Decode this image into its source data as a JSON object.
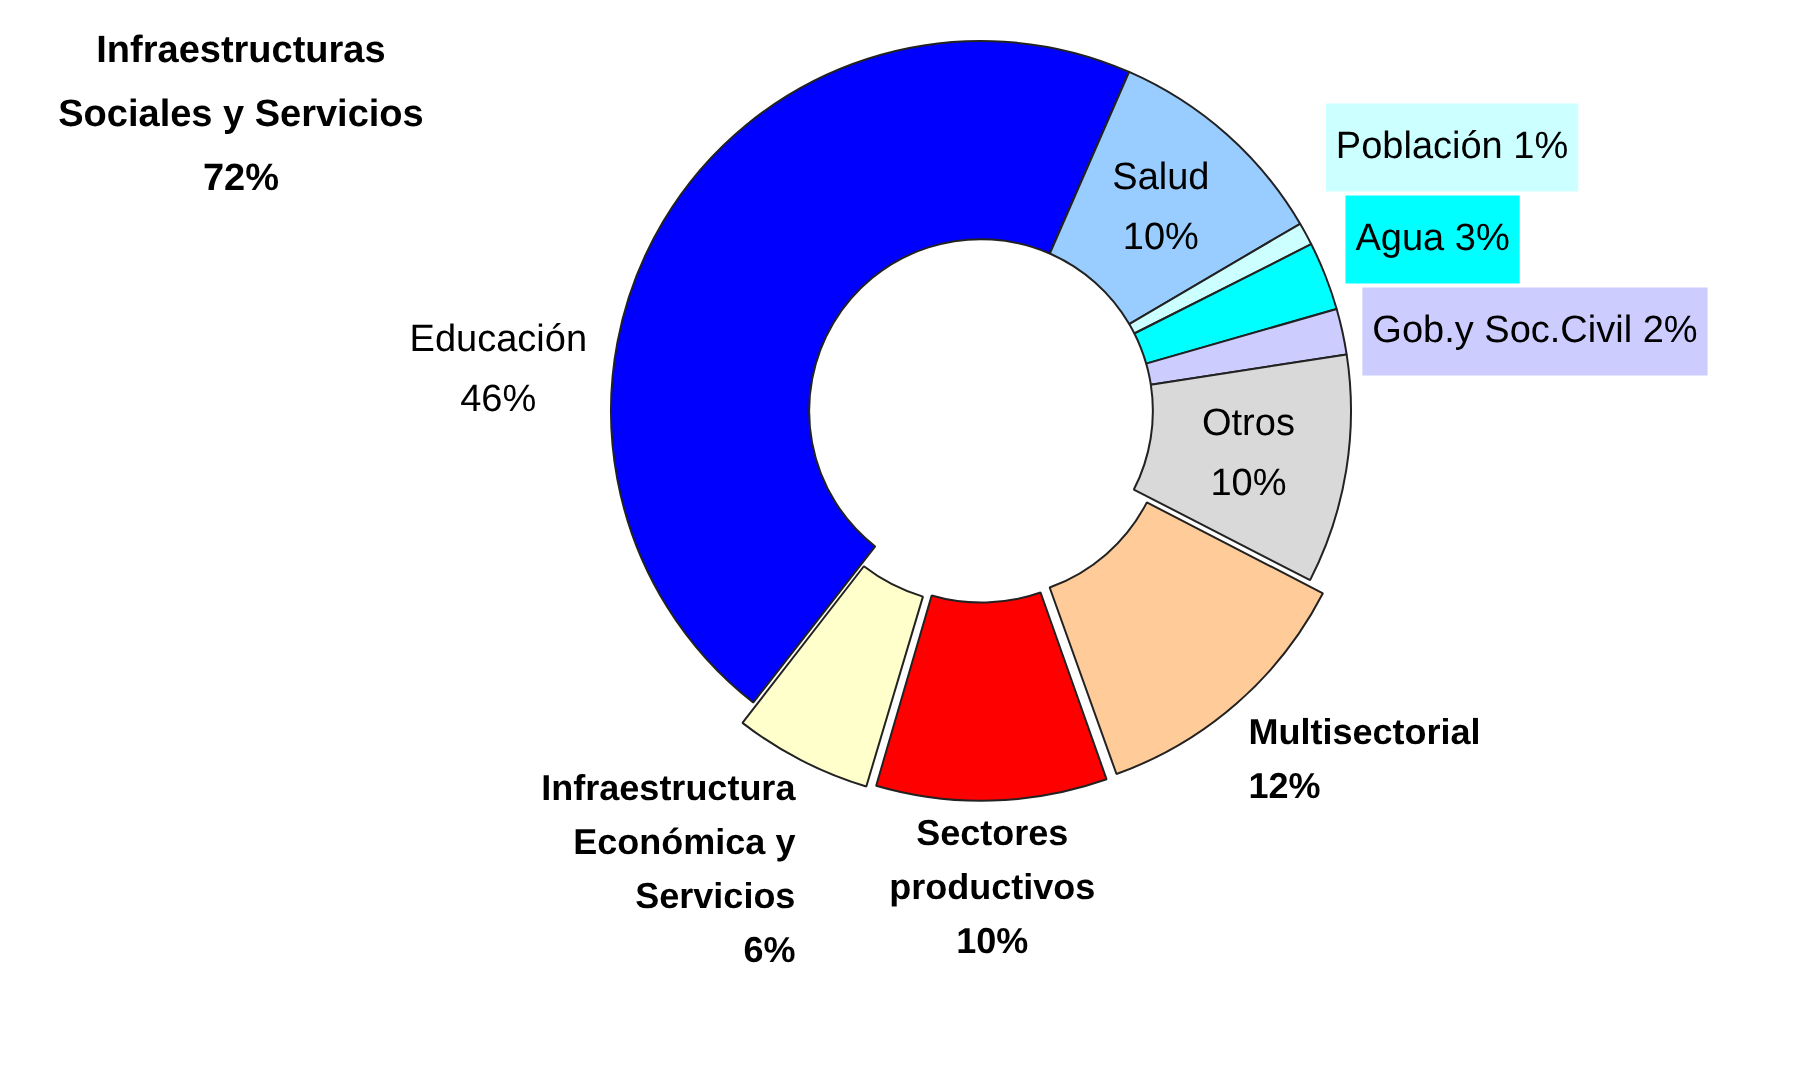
{
  "chart_data": {
    "type": "donut",
    "categories": [
      "Educación",
      "Salud",
      "Población",
      "Agua",
      "Gob.y Soc.Civil",
      "Otros",
      "Multisectorial",
      "Sectores productivos",
      "Infraestructura Económica y Servicios"
    ],
    "values": [
      46,
      10,
      1,
      3,
      2,
      10,
      12,
      10,
      6
    ],
    "value_labels": [
      "46%",
      "10%",
      "1%",
      "3%",
      "2%",
      "10%",
      "12%",
      "10%",
      "6%"
    ],
    "colors": [
      "#0000ff",
      "#99ccff",
      "#ccffff",
      "#00ffff",
      "#ccccff",
      "#d9d9d9",
      "#ffcc99",
      "#ff0000",
      "#ffffcc"
    ],
    "annotations": [
      "Infraestructuras Sociales y Servicios 72%"
    ],
    "legend": false
  }
}
